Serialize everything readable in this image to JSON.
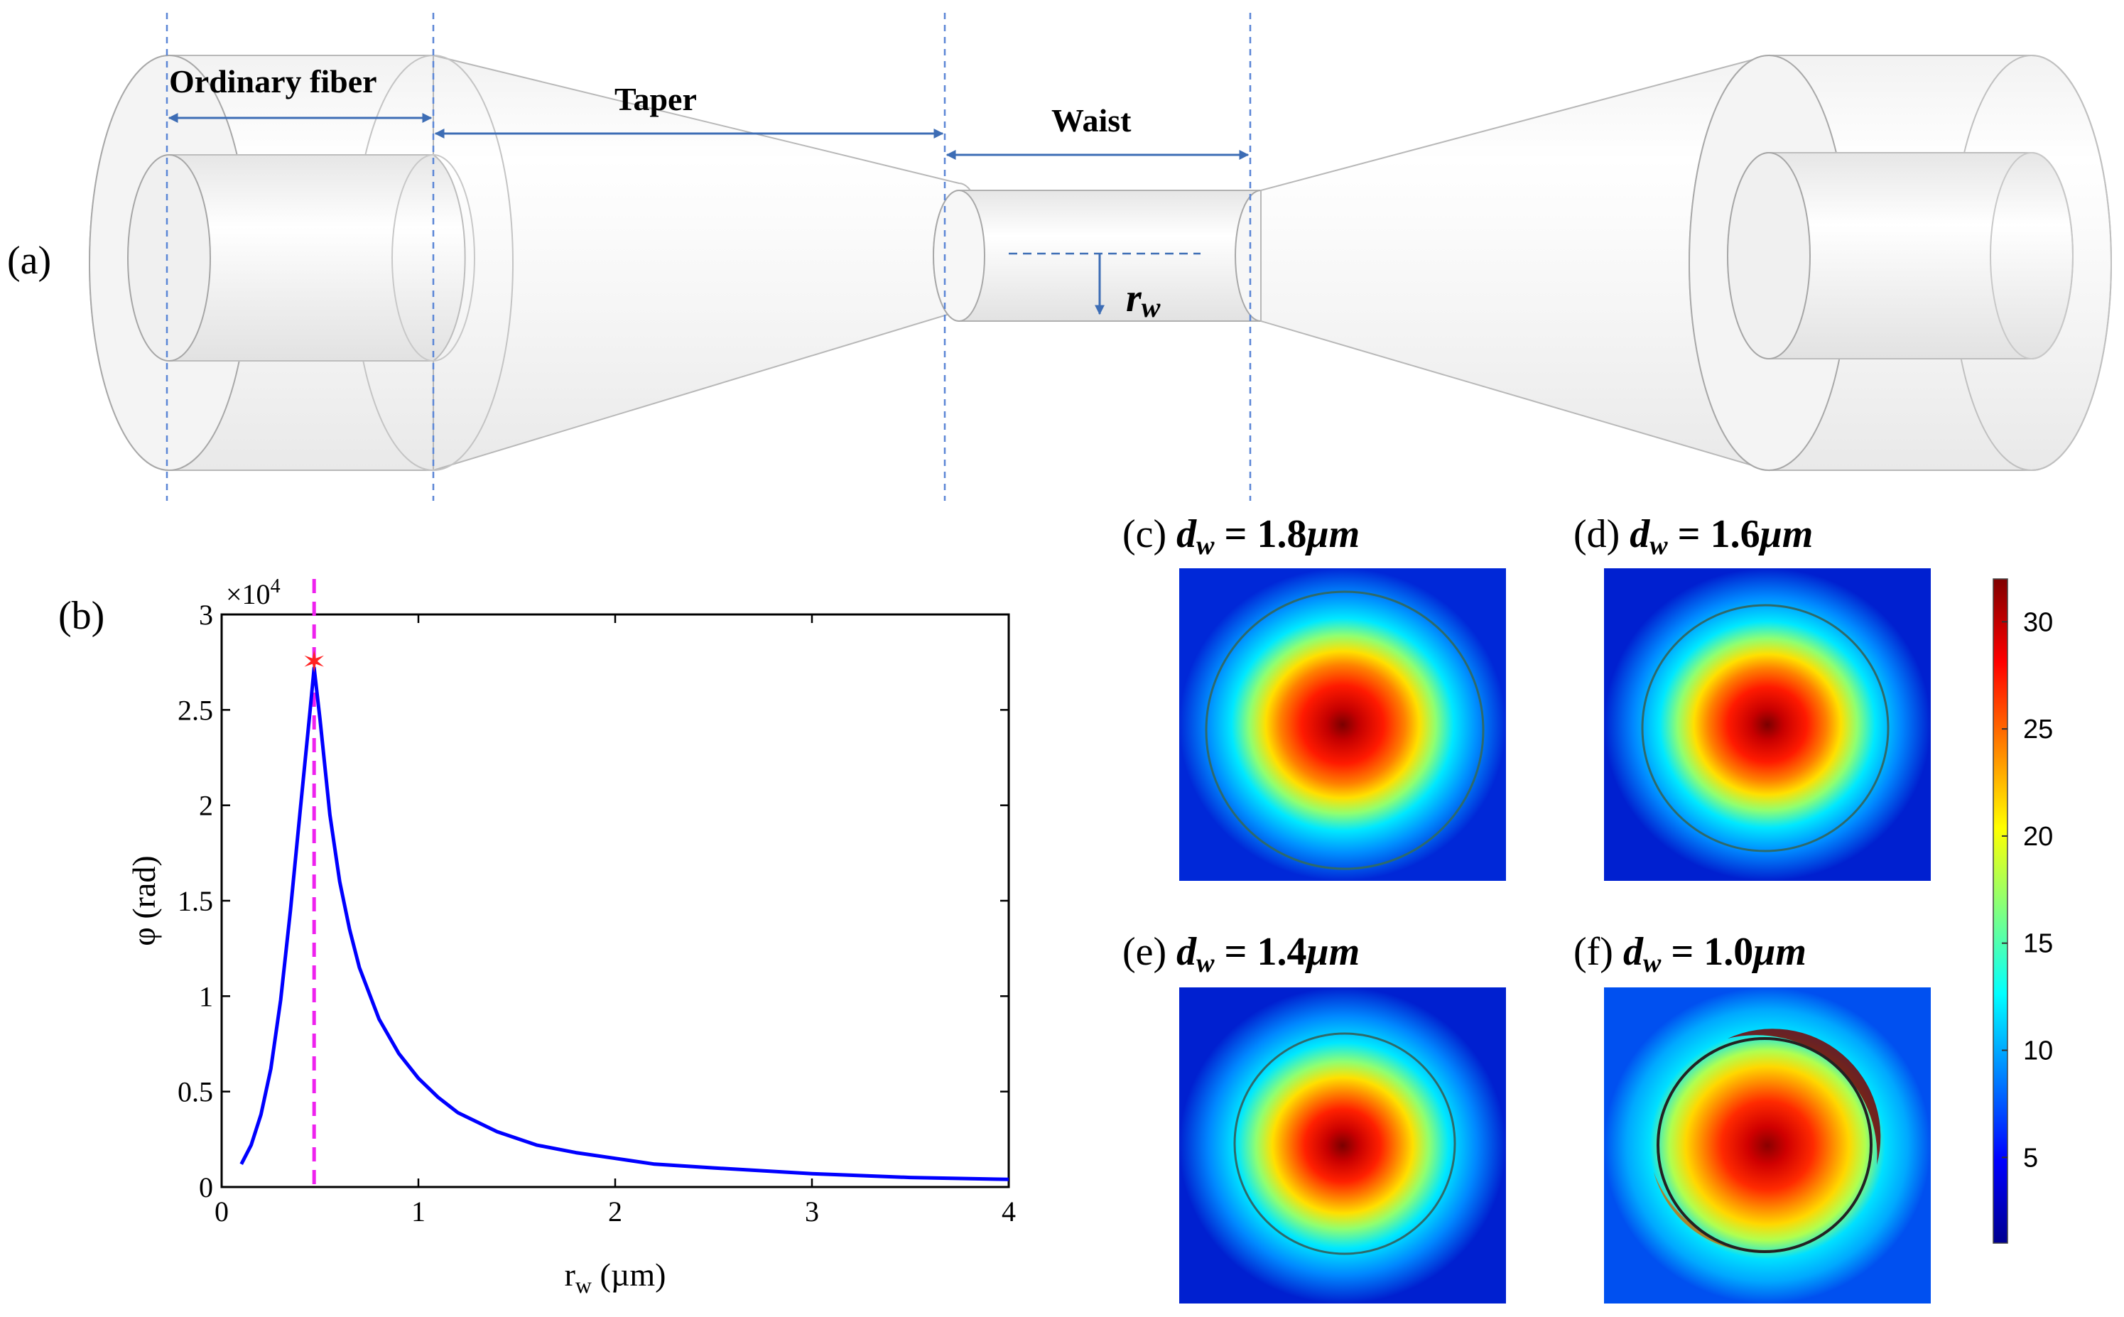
{
  "panel_a": {
    "label": "(a)",
    "segments": [
      "Ordinary fiber",
      "Taper",
      "Waist"
    ],
    "radius_symbol": "r",
    "radius_subscript": "w"
  },
  "panel_b": {
    "label": "(b)",
    "exponent_label": "×10",
    "exponent_power": "4"
  },
  "chart_data": {
    "type": "line",
    "title": "",
    "xlabel": "r_w (µm)",
    "ylabel": "φ (rad)",
    "xlabel_main": "r",
    "xlabel_sub": "w",
    "xlabel_unit": " (µm)",
    "xlim": [
      0,
      4
    ],
    "ylim": [
      0,
      3
    ],
    "y_scale_exponent": 4,
    "xticks": [
      0,
      1,
      2,
      3,
      4
    ],
    "xtick_labels": [
      "0",
      "1",
      "2",
      "3",
      "4"
    ],
    "yticks": [
      0,
      0.5,
      1,
      1.5,
      2,
      2.5,
      3
    ],
    "ytick_labels": [
      "0",
      "0.5",
      "1",
      "1.5",
      "2",
      "2.5",
      "3"
    ],
    "series": [
      {
        "name": "phi",
        "color": "#0000ff",
        "x": [
          0.1,
          0.15,
          0.2,
          0.25,
          0.3,
          0.35,
          0.4,
          0.45,
          0.47,
          0.5,
          0.55,
          0.6,
          0.65,
          0.7,
          0.8,
          0.9,
          1.0,
          1.1,
          1.2,
          1.4,
          1.6,
          1.8,
          2.0,
          2.2,
          2.5,
          3.0,
          3.5,
          4.0
        ],
        "y": [
          0.12,
          0.22,
          0.38,
          0.62,
          0.98,
          1.45,
          1.98,
          2.5,
          2.72,
          2.45,
          1.95,
          1.6,
          1.35,
          1.15,
          0.88,
          0.7,
          0.57,
          0.47,
          0.39,
          0.29,
          0.22,
          0.18,
          0.15,
          0.12,
          0.1,
          0.07,
          0.05,
          0.04
        ]
      }
    ],
    "marker": {
      "x": 0.47,
      "y": 2.75,
      "shape": "star",
      "color": "#ff2222"
    },
    "vline": {
      "x": 0.47,
      "color": "#ee22ee",
      "style": "dashed"
    }
  },
  "maps": [
    {
      "label": "(c)",
      "symbol": "d",
      "sub": "w",
      "eq": " = ",
      "value": "1.8",
      "unit": "μm"
    },
    {
      "label": "(d)",
      "symbol": "d",
      "sub": "w",
      "eq": " = ",
      "value": "1.6",
      "unit": "μm"
    },
    {
      "label": "(e)",
      "symbol": "d",
      "sub": "w",
      "eq": " = ",
      "value": "1.4",
      "unit": "μm"
    },
    {
      "label": "(f)",
      "symbol": "d",
      "sub": "w",
      "eq": " = ",
      "value": "1.0",
      "unit": "μm"
    }
  ],
  "colorbar": {
    "ticks": [
      "5",
      "10",
      "15",
      "20",
      "25",
      "30"
    ],
    "colors": [
      "#00008f",
      "#0000ff",
      "#0080ff",
      "#00ffff",
      "#80ff80",
      "#ffff00",
      "#ff8000",
      "#ff0000",
      "#800000"
    ]
  }
}
